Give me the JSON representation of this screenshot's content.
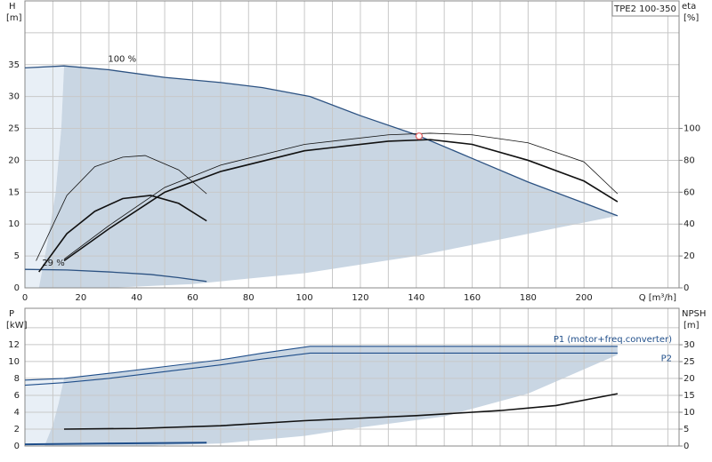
{
  "chart_data": [
    {
      "type": "line",
      "box_label": "TPE2 100-350",
      "y_label": "H",
      "y_unit": "[m]",
      "y2_label": "eta",
      "y2_unit": "[%]",
      "x_label": "Q [m³/h]",
      "xlim": [
        0,
        234
      ],
      "xticks": [
        0,
        20,
        40,
        60,
        80,
        100,
        120,
        140,
        160,
        180,
        200
      ],
      "xgrid": [
        10,
        30,
        50,
        70,
        90,
        110,
        130,
        150,
        170,
        190,
        210,
        230
      ],
      "ylim": [
        0,
        45
      ],
      "yticks": [
        0,
        5,
        10,
        15,
        20,
        25,
        30,
        35
      ],
      "ygrid": [
        40
      ],
      "y2lim": [
        0,
        180
      ],
      "y2ticks": [
        0,
        20,
        40,
        60,
        80,
        100
      ],
      "grid": true,
      "light_area": {
        "color": "#e8eff6",
        "x": [
          0,
          14,
          13,
          11,
          8,
          5,
          0
        ],
        "y": [
          34.5,
          34.8,
          25,
          15,
          7,
          0,
          0
        ]
      },
      "area": {
        "color": "#c9d6e3",
        "x": [
          14,
          30,
          50,
          70,
          85,
          102,
          120,
          140,
          160,
          180,
          200,
          212,
          170,
          140,
          100,
          60,
          30,
          5,
          8,
          11,
          13
        ],
        "y": [
          34.8,
          34.2,
          33,
          32.2,
          31.4,
          30,
          27,
          24,
          20.3,
          16.6,
          13.3,
          11.3,
          7.6,
          5,
          2.3,
          0.6,
          0,
          0,
          7,
          15,
          25
        ]
      },
      "series": [
        {
          "name": "100 %",
          "color": "#2c5282",
          "width": 1.3,
          "x": [
            0,
            14,
            30,
            50,
            70,
            85,
            102,
            120,
            140,
            160,
            180,
            200,
            212
          ],
          "values": [
            34.5,
            34.8,
            34.2,
            33,
            32.2,
            31.4,
            30,
            27,
            24,
            20.3,
            16.6,
            13.3,
            11.3
          ]
        },
        {
          "name": "29 %",
          "color": "#2c5282",
          "width": 1.3,
          "x": [
            0,
            15,
            30,
            45,
            55,
            65
          ],
          "values": [
            2.9,
            2.8,
            2.5,
            2.1,
            1.6,
            1.0
          ]
        },
        {
          "axis": "y2",
          "color": "#111",
          "width": 1.6,
          "x": [
            14,
            30,
            50,
            70,
            100,
            130,
            145,
            160,
            180,
            200,
            212
          ],
          "values": [
            17,
            37,
            60,
            73,
            86,
            92,
            93,
            90,
            80,
            67,
            54
          ]
        },
        {
          "axis": "y2",
          "color": "#111",
          "width": 0.8,
          "x": [
            14,
            30,
            50,
            70,
            100,
            130,
            145,
            160,
            180,
            200,
            212
          ],
          "values": [
            18,
            39,
            63,
            77,
            90,
            96,
            97,
            96,
            91,
            79,
            59
          ]
        },
        {
          "axis": "y2",
          "color": "#111",
          "width": 1.6,
          "x": [
            5,
            15,
            25,
            35,
            45,
            55,
            65
          ],
          "values": [
            10,
            34,
            48,
            56,
            58,
            53,
            42
          ]
        },
        {
          "axis": "y2",
          "color": "#111",
          "width": 0.8,
          "x": [
            4,
            15,
            25,
            35,
            43,
            55,
            65
          ],
          "values": [
            17,
            58,
            76,
            82,
            83,
            74,
            59
          ]
        }
      ],
      "marker": {
        "x": 141,
        "y": 23.8,
        "color": "#e06060"
      }
    },
    {
      "type": "line",
      "y_label": "P",
      "y_unit": "[kW]",
      "y2_label": "NPSH",
      "y2_unit": "[m]",
      "xlim": [
        0,
        234
      ],
      "xticks": [
        0,
        20,
        40,
        60,
        80,
        100,
        120,
        140,
        160,
        180,
        200
      ],
      "xgrid": [
        10,
        30,
        50,
        70,
        90,
        110,
        130,
        150,
        170,
        190,
        210,
        230
      ],
      "ylim": [
        0,
        16.3
      ],
      "yticks": [
        0,
        2,
        4,
        6,
        8,
        10,
        12
      ],
      "ygrid": [
        14
      ],
      "y2lim": [
        0,
        40.8
      ],
      "y2ticks": [
        0,
        5,
        10,
        15,
        20,
        25,
        30
      ],
      "grid": true,
      "light_area": {
        "color": "#e8eff6",
        "x": [
          0,
          14,
          12,
          10,
          7,
          0
        ],
        "y": [
          7.8,
          8.0,
          5,
          2.5,
          0,
          0
        ]
      },
      "area": {
        "color": "#c9d6e3",
        "x": [
          14,
          30,
          50,
          70,
          85,
          102,
          212,
          212,
          180,
          150,
          120,
          100,
          70,
          40,
          7,
          10,
          12
        ],
        "y": [
          8.0,
          8.6,
          9.4,
          10.2,
          11.0,
          11.8,
          11.8,
          10.8,
          6.2,
          3.5,
          2.2,
          1.2,
          0.3,
          0,
          0,
          2.5,
          5
        ]
      },
      "series": [
        {
          "name": "P1 (motor+freq.converter)",
          "color": "#1f4e8a",
          "width": 1.1,
          "x": [
            0,
            14,
            30,
            50,
            70,
            85,
            102,
            212
          ],
          "values": [
            7.8,
            8.0,
            8.6,
            9.4,
            10.2,
            11.0,
            11.8,
            11.8
          ]
        },
        {
          "name": "P2",
          "color": "#1f4e8a",
          "width": 1.1,
          "x": [
            0,
            14,
            30,
            50,
            70,
            85,
            102,
            212
          ],
          "values": [
            7.2,
            7.5,
            8.0,
            8.8,
            9.6,
            10.3,
            11.0,
            11.0
          ]
        },
        {
          "color": "#1f4e8a",
          "width": 2,
          "x": [
            0,
            30,
            65
          ],
          "values": [
            0.2,
            0.3,
            0.4
          ]
        },
        {
          "axis": "y2",
          "color": "#111",
          "width": 1.6,
          "x": [
            14,
            40,
            70,
            100,
            140,
            170,
            190,
            212
          ],
          "values": [
            5,
            5.2,
            6,
            7.5,
            9,
            10.5,
            12,
            15.5
          ]
        }
      ]
    }
  ]
}
